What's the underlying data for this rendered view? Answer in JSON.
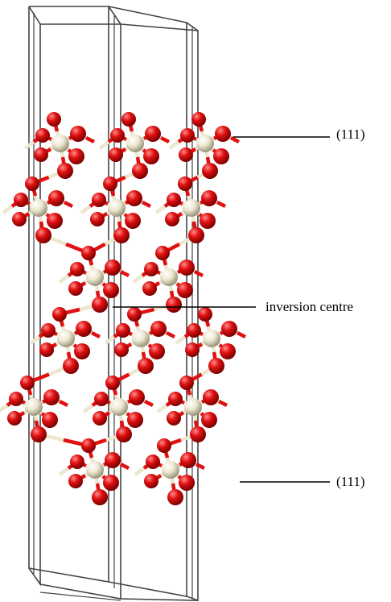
{
  "labels": {
    "surface_top": "(111)",
    "inversion_centre": "inversion centre",
    "surface_bottom": "(111)"
  },
  "colors": {
    "oxygen_atom": "#e01010",
    "cation_atom": "#ece7cf",
    "cell_frame": "#444444",
    "pointer_line": "#000000"
  }
}
